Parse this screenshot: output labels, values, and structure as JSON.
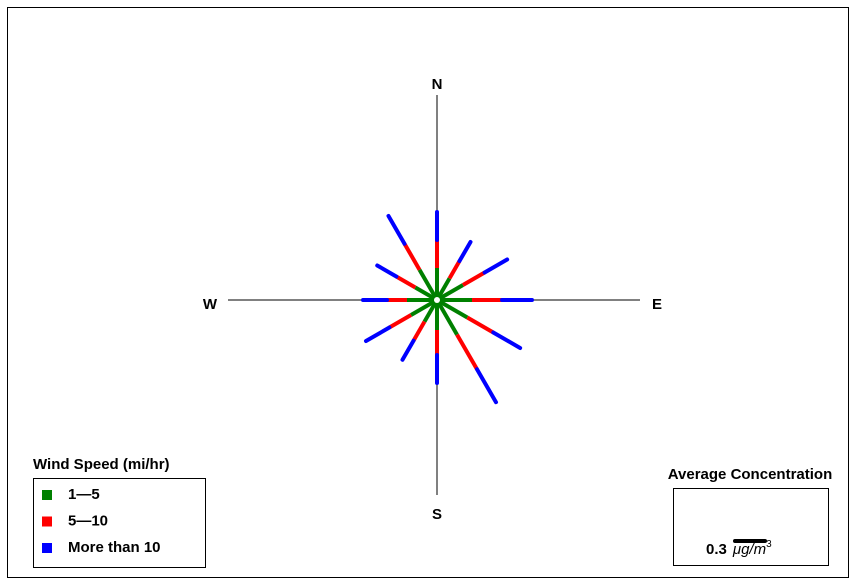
{
  "chart_data": {
    "type": "windrose",
    "x": [
      0,
      30,
      60,
      90,
      120,
      150,
      180,
      210,
      240,
      270,
      300,
      330
    ],
    "compass": [
      "N",
      "E",
      "S",
      "W"
    ],
    "legend_title": "Wind Speed (mi/hr)",
    "series": [
      {
        "name": "1—5",
        "color": "#008000",
        "values": [
          0.32,
          0.25,
          0.3,
          0.35,
          0.35,
          0.4,
          0.3,
          0.25,
          0.3,
          0.3,
          0.25,
          0.35
        ]
      },
      {
        "name": "5—10",
        "color": "#ff0000",
        "values": [
          0.28,
          0.2,
          0.25,
          0.3,
          0.3,
          0.4,
          0.25,
          0.22,
          0.25,
          0.2,
          0.22,
          0.3
        ]
      },
      {
        "name": "More than 10",
        "color": "#0000ff",
        "values": [
          0.28,
          0.22,
          0.26,
          0.3,
          0.31,
          0.38,
          0.28,
          0.22,
          0.27,
          0.24,
          0.22,
          0.32
        ]
      }
    ],
    "scale_title": "Average Concentration",
    "scale": {
      "value": 0.3,
      "unit": "μg/m",
      "unit_power": "3"
    }
  }
}
